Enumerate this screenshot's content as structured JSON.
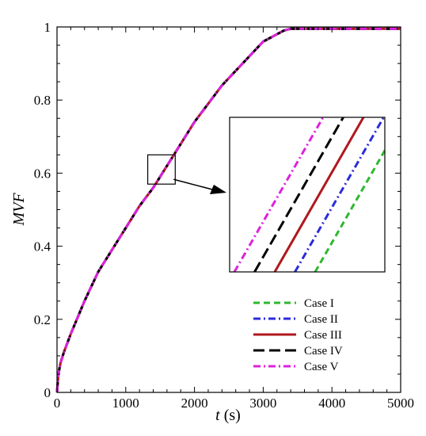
{
  "chart_data": {
    "type": "line",
    "xlabel_var": "t",
    "xlabel_unit": "(s)",
    "ylabel": "MVF",
    "xlim": [
      0,
      5000
    ],
    "ylim": [
      0,
      1
    ],
    "x_ticks": [
      "0",
      "1000",
      "2000",
      "3000",
      "4000",
      "5000"
    ],
    "y_ticks": [
      "0",
      "0.2",
      "0.4",
      "0.6",
      "0.8",
      "1"
    ],
    "grid": false,
    "legend_position": "bottom-right",
    "x": [
      0,
      20,
      50,
      100,
      200,
      400,
      600,
      800,
      1000,
      1200,
      1400,
      1600,
      1800,
      2000,
      2200,
      2400,
      2600,
      2800,
      3000,
      3200,
      3300,
      3400,
      3500,
      3600,
      3800,
      4000,
      4500,
      5000
    ],
    "series": [
      {
        "name": "Case I",
        "color": "#2db82d",
        "dash": "dashed",
        "offset": 30,
        "values": [
          0,
          0.05,
          0.08,
          0.11,
          0.16,
          0.25,
          0.33,
          0.39,
          0.45,
          0.51,
          0.56,
          0.62,
          0.68,
          0.74,
          0.79,
          0.84,
          0.88,
          0.92,
          0.96,
          0.98,
          0.99,
          0.995,
          0.995,
          0.995,
          0.995,
          0.995,
          0.995,
          0.995
        ]
      },
      {
        "name": "Case II",
        "color": "#2b2bdd",
        "dash": "dashdot",
        "offset": 15,
        "values": [
          0,
          0.05,
          0.08,
          0.11,
          0.16,
          0.25,
          0.33,
          0.39,
          0.45,
          0.51,
          0.56,
          0.62,
          0.68,
          0.74,
          0.79,
          0.84,
          0.88,
          0.92,
          0.96,
          0.98,
          0.99,
          0.995,
          0.995,
          0.995,
          0.995,
          0.995,
          0.995,
          0.995
        ]
      },
      {
        "name": "Case III",
        "color": "#b0181d",
        "dash": "solid",
        "offset": 0,
        "values": [
          0,
          0.05,
          0.08,
          0.11,
          0.16,
          0.25,
          0.33,
          0.39,
          0.45,
          0.51,
          0.56,
          0.62,
          0.68,
          0.74,
          0.79,
          0.84,
          0.88,
          0.92,
          0.96,
          0.98,
          0.99,
          0.995,
          0.995,
          0.995,
          0.995,
          0.995,
          0.995,
          0.995
        ]
      },
      {
        "name": "Case IV",
        "color": "#000000",
        "dash": "longdash",
        "offset": -15,
        "values": [
          0,
          0.05,
          0.08,
          0.11,
          0.16,
          0.25,
          0.33,
          0.39,
          0.45,
          0.51,
          0.56,
          0.62,
          0.68,
          0.74,
          0.79,
          0.84,
          0.88,
          0.92,
          0.96,
          0.98,
          0.99,
          0.995,
          0.995,
          0.995,
          0.995,
          0.995,
          0.995,
          0.995
        ]
      },
      {
        "name": "Case V",
        "color": "#dd22dd",
        "dash": "dashdot",
        "offset": -30,
        "values": [
          0,
          0.05,
          0.08,
          0.11,
          0.16,
          0.25,
          0.33,
          0.39,
          0.45,
          0.51,
          0.56,
          0.62,
          0.68,
          0.74,
          0.79,
          0.84,
          0.88,
          0.92,
          0.96,
          0.98,
          0.99,
          0.995,
          0.995,
          0.995,
          0.995,
          0.995,
          0.995,
          0.995
        ]
      }
    ],
    "zoom_region": {
      "xlim": [
        1320,
        1720
      ],
      "ylim": [
        0.57,
        0.65
      ]
    }
  }
}
